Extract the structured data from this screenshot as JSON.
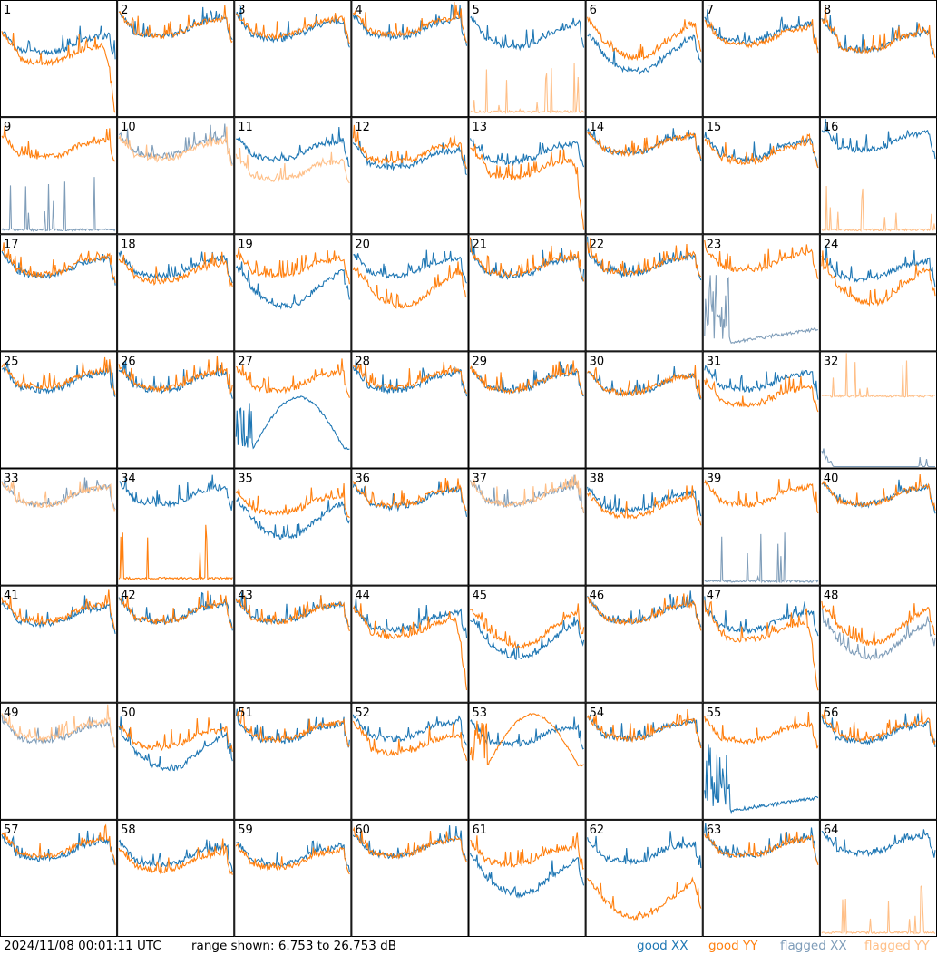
{
  "chart_data": {
    "type": "line",
    "layout": "8x8 small multiples (antenna panels 1-64)",
    "y_unit": "dB",
    "ylim": [
      6.753,
      26.753
    ],
    "grid": false,
    "legend_position": "bottom-right",
    "colors": {
      "good_xx": "#1f77b4",
      "good_yy": "#ff7f0e",
      "flagged_xx": "#7f9db9",
      "flagged_yy": "#ffbf87"
    },
    "panels": [
      {
        "label": "1",
        "xx": "good",
        "yy": "good",
        "xx_base": 20.5,
        "yy_base": 19.0,
        "xx_prof": "bath",
        "yy_prof": "droop"
      },
      {
        "label": "2",
        "xx": "good",
        "yy": "good",
        "xx_base": 22.5,
        "yy_base": 22.5
      },
      {
        "label": "3",
        "xx": "good",
        "yy": "good",
        "xx_base": 22.0,
        "yy_base": 22.5
      },
      {
        "label": "4",
        "xx": "good",
        "yy": "good",
        "xx_base": 22.3,
        "yy_base": 22.8
      },
      {
        "label": "5",
        "xx": "good",
        "yy": "flagged",
        "xx_base": 22.0,
        "yy_base": 7.2,
        "xx_prof": "dip",
        "yy_prof": "spiky"
      },
      {
        "label": "6",
        "xx": "good",
        "yy": "good",
        "xx_base": 19.0,
        "yy_base": 21.5,
        "xx_prof": "bowl",
        "yy_prof": "bowl"
      },
      {
        "label": "7",
        "xx": "good",
        "yy": "good",
        "xx_base": 21.5,
        "yy_base": 21.0
      },
      {
        "label": "8",
        "xx": "good",
        "yy": "good",
        "xx_base": 21.5,
        "yy_base": 21.5,
        "xx_prof": "flat",
        "yy_prof": "flat"
      },
      {
        "label": "9",
        "xx": "flagged",
        "yy": "good",
        "xx_base": 7.0,
        "yy_base": 21.8,
        "xx_prof": "spiky"
      },
      {
        "label": "10",
        "xx": "flagged",
        "yy": "flagged",
        "xx_base": 22.0,
        "yy_base": 21.5
      },
      {
        "label": "11",
        "xx": "good",
        "yy": "flagged",
        "xx_base": 21.5,
        "yy_base": 18.0
      },
      {
        "label": "12",
        "xx": "good",
        "yy": "good",
        "xx_base": 20.0,
        "yy_base": 21.0
      },
      {
        "label": "13",
        "xx": "good",
        "yy": "good",
        "xx_base": 21.0,
        "yy_base": 19.5,
        "yy_prof": "droop"
      },
      {
        "label": "14",
        "xx": "good",
        "yy": "good",
        "xx_base": 22.5,
        "yy_base": 22.5
      },
      {
        "label": "15",
        "xx": "good",
        "yy": "good",
        "xx_base": 21.5,
        "yy_base": 21.0
      },
      {
        "label": "16",
        "xx": "good",
        "yy": "flagged",
        "xx_base": 23.0,
        "yy_base": 7.0,
        "yy_prof": "spiky"
      },
      {
        "label": "17",
        "xx": "good",
        "yy": "good",
        "xx_base": 21.5,
        "yy_base": 21.8
      },
      {
        "label": "18",
        "xx": "good",
        "yy": "good",
        "xx_base": 21.5,
        "yy_base": 20.5
      },
      {
        "label": "19",
        "xx": "good",
        "yy": "good",
        "xx_base": 19.0,
        "yy_base": 21.5,
        "xx_prof": "bowl"
      },
      {
        "label": "20",
        "xx": "good",
        "yy": "good",
        "xx_base": 21.5,
        "yy_base": 19.0,
        "yy_prof": "bowl"
      },
      {
        "label": "21",
        "xx": "good",
        "yy": "good",
        "xx_base": 21.5,
        "yy_base": 21.8
      },
      {
        "label": "22",
        "xx": "good",
        "yy": "good",
        "xx_base": 21.8,
        "yy_base": 22.0
      },
      {
        "label": "23",
        "xx": "flagged",
        "yy": "good",
        "xx_base": 8.0,
        "yy_base": 22.5,
        "xx_prof": "spikyramp"
      },
      {
        "label": "24",
        "xx": "good",
        "yy": "good",
        "xx_base": 21.0,
        "yy_base": 19.5,
        "yy_prof": "bowl"
      },
      {
        "label": "25",
        "xx": "good",
        "yy": "good",
        "xx_base": 22.0,
        "yy_base": 22.5
      },
      {
        "label": "26",
        "xx": "good",
        "yy": "good",
        "xx_base": 22.0,
        "yy_base": 22.3
      },
      {
        "label": "27",
        "xx": "good",
        "yy": "good",
        "xx_base": 10.0,
        "yy_base": 22.0,
        "xx_prof": "hump"
      },
      {
        "label": "28",
        "xx": "good",
        "yy": "good",
        "xx_base": 22.0,
        "yy_base": 22.5
      },
      {
        "label": "29",
        "xx": "good",
        "yy": "good",
        "xx_base": 22.0,
        "yy_base": 22.0
      },
      {
        "label": "30",
        "xx": "good",
        "yy": "good",
        "xx_base": 21.5,
        "yy_base": 21.5
      },
      {
        "label": "31",
        "xx": "good",
        "yy": "good",
        "xx_base": 22.0,
        "yy_base": 19.5
      },
      {
        "label": "32",
        "xx": "flagged",
        "yy": "flagged",
        "xx_base": 7.0,
        "yy_base": 19.0,
        "xx_prof": "flat",
        "yy_prof": "spiky"
      },
      {
        "label": "33",
        "xx": "flagged",
        "yy": "flagged",
        "xx_base": 22.5,
        "yy_base": 22.5
      },
      {
        "label": "34",
        "xx": "good",
        "yy": "good",
        "xx_base": 22.5,
        "yy_base": 7.5,
        "yy_prof": "spiky"
      },
      {
        "label": "35",
        "xx": "good",
        "yy": "good",
        "xx_base": 19.5,
        "yy_base": 21.0,
        "xx_prof": "bowl"
      },
      {
        "label": "36",
        "xx": "good",
        "yy": "good",
        "xx_base": 22.0,
        "yy_base": 22.3
      },
      {
        "label": "37",
        "xx": "flagged",
        "yy": "flagged",
        "xx_base": 22.5,
        "yy_base": 22.5
      },
      {
        "label": "38",
        "xx": "good",
        "yy": "good",
        "xx_base": 21.5,
        "yy_base": 20.5
      },
      {
        "label": "39",
        "xx": "flagged",
        "yy": "good",
        "xx_base": 7.0,
        "yy_base": 22.5,
        "xx_prof": "spiky"
      },
      {
        "label": "40",
        "xx": "good",
        "yy": "good",
        "xx_base": 22.5,
        "yy_base": 22.5
      },
      {
        "label": "41",
        "xx": "good",
        "yy": "good",
        "xx_base": 22.0,
        "yy_base": 22.5
      },
      {
        "label": "42",
        "xx": "good",
        "yy": "good",
        "xx_base": 22.5,
        "yy_base": 22.5
      },
      {
        "label": "43",
        "xx": "good",
        "yy": "good",
        "xx_base": 22.5,
        "yy_base": 22.5
      },
      {
        "label": "44",
        "xx": "good",
        "yy": "good",
        "xx_base": 21.0,
        "yy_base": 21.0,
        "yy_prof": "droop"
      },
      {
        "label": "45",
        "xx": "good",
        "yy": "good",
        "xx_base": 19.0,
        "yy_base": 21.0,
        "xx_prof": "bowl",
        "yy_prof": "bowl"
      },
      {
        "label": "46",
        "xx": "good",
        "yy": "good",
        "xx_base": 22.5,
        "yy_base": 22.5
      },
      {
        "label": "47",
        "xx": "good",
        "yy": "good",
        "xx_base": 21.0,
        "yy_base": 20.5,
        "yy_prof": "droop"
      },
      {
        "label": "48",
        "xx": "flagged",
        "yy": "good",
        "xx_base": 19.0,
        "yy_base": 21.5,
        "xx_prof": "bowl",
        "yy_prof": "bowl"
      },
      {
        "label": "49",
        "xx": "flagged",
        "yy": "flagged",
        "xx_base": 22.0,
        "yy_base": 22.5
      },
      {
        "label": "50",
        "xx": "good",
        "yy": "good",
        "xx_base": 20.0,
        "yy_base": 21.0,
        "xx_prof": "bowl"
      },
      {
        "label": "51",
        "xx": "good",
        "yy": "good",
        "xx_base": 22.0,
        "yy_base": 22.3
      },
      {
        "label": "52",
        "xx": "good",
        "yy": "good",
        "xx_base": 22.5,
        "yy_base": 21.5,
        "yy_prof": "flat"
      },
      {
        "label": "53",
        "xx": "good",
        "yy": "good",
        "xx_base": 21.5,
        "yy_base": 16.0,
        "yy_prof": "hump"
      },
      {
        "label": "54",
        "xx": "good",
        "yy": "good",
        "xx_base": 22.5,
        "yy_base": 22.5
      },
      {
        "label": "55",
        "xx": "good",
        "yy": "good",
        "xx_base": 8.0,
        "yy_base": 22.0,
        "xx_prof": "spikyramp"
      },
      {
        "label": "56",
        "xx": "good",
        "yy": "good",
        "xx_base": 22.0,
        "yy_base": 22.5
      },
      {
        "label": "57",
        "xx": "good",
        "yy": "good",
        "xx_base": 22.0,
        "yy_base": 22.5
      },
      {
        "label": "58",
        "xx": "good",
        "yy": "good",
        "xx_base": 21.0,
        "yy_base": 20.0
      },
      {
        "label": "59",
        "xx": "good",
        "yy": "good",
        "xx_base": 21.0,
        "yy_base": 20.5
      },
      {
        "label": "60",
        "xx": "good",
        "yy": "good",
        "xx_base": 22.5,
        "yy_base": 22.5
      },
      {
        "label": "61",
        "xx": "good",
        "yy": "good",
        "xx_base": 18.5,
        "yy_base": 21.0,
        "xx_prof": "bowl"
      },
      {
        "label": "62",
        "xx": "good",
        "yy": "good",
        "xx_base": 21.5,
        "yy_base": 14.5,
        "yy_prof": "bowl"
      },
      {
        "label": "63",
        "xx": "good",
        "yy": "good",
        "xx_base": 22.5,
        "yy_base": 22.5
      },
      {
        "label": "64",
        "xx": "good",
        "yy": "flagged",
        "xx_base": 23.0,
        "yy_base": 7.0,
        "yy_prof": "spiky"
      }
    ]
  },
  "footer": {
    "timestamp": "2024/11/08 00:01:11 UTC",
    "range_label": "range shown: 6.753 to 26.753 dB"
  },
  "legend": {
    "good_xx": "good XX",
    "good_yy": "good YY",
    "flagged_xx": "flagged XX",
    "flagged_yy": "flagged YY"
  }
}
